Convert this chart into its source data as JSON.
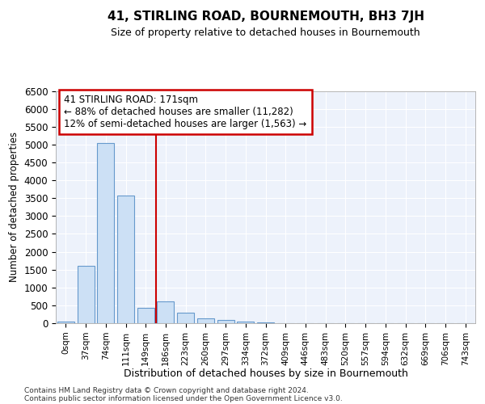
{
  "title": "41, STIRLING ROAD, BOURNEMOUTH, BH3 7JH",
  "subtitle": "Size of property relative to detached houses in Bournemouth",
  "xlabel": "Distribution of detached houses by size in Bournemouth",
  "ylabel": "Number of detached properties",
  "bar_labels": [
    "0sqm",
    "37sqm",
    "74sqm",
    "111sqm",
    "149sqm",
    "186sqm",
    "223sqm",
    "260sqm",
    "297sqm",
    "334sqm",
    "372sqm",
    "409sqm",
    "446sqm",
    "483sqm",
    "520sqm",
    "557sqm",
    "594sqm",
    "632sqm",
    "669sqm",
    "706sqm",
    "743sqm"
  ],
  "bar_values": [
    50,
    1600,
    5050,
    3570,
    420,
    600,
    290,
    130,
    80,
    50,
    30,
    10,
    5,
    3,
    2,
    1,
    0,
    0,
    0,
    0,
    0
  ],
  "bar_color": "#cce0f5",
  "bar_edge_color": "#6699cc",
  "vline_x": 4.5,
  "vline_color": "#cc0000",
  "annotation_text": "41 STIRLING ROAD: 171sqm\n← 88% of detached houses are smaller (11,282)\n12% of semi-detached houses are larger (1,563) →",
  "annotation_box_color": "#cc0000",
  "ylim": [
    0,
    6500
  ],
  "yticks": [
    0,
    500,
    1000,
    1500,
    2000,
    2500,
    3000,
    3500,
    4000,
    4500,
    5000,
    5500,
    6000,
    6500
  ],
  "fig_bg": "#ffffff",
  "ax_bg": "#edf2fb",
  "grid_color": "#ffffff",
  "footer_line1": "Contains HM Land Registry data © Crown copyright and database right 2024.",
  "footer_line2": "Contains public sector information licensed under the Open Government Licence v3.0."
}
